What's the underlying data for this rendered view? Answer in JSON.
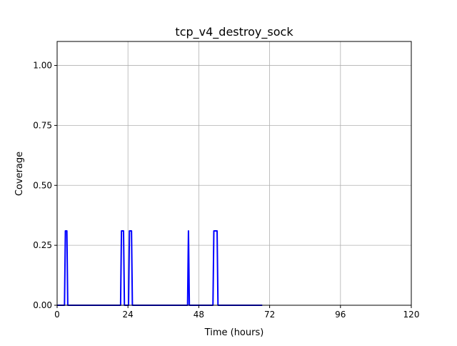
{
  "chart_data": {
    "type": "line",
    "title": "tcp_v4_destroy_sock",
    "xlabel": "Time (hours)",
    "ylabel": "Coverage",
    "xlim": [
      0,
      120
    ],
    "ylim": [
      0,
      1.1
    ],
    "xticks": [
      0,
      24,
      48,
      72,
      96,
      120
    ],
    "xtick_labels": [
      "0",
      "24",
      "48",
      "72",
      "96",
      "120"
    ],
    "yticks": [
      0,
      0.25,
      0.5,
      0.75,
      1.0
    ],
    "ytick_labels": [
      "0.00",
      "0.25",
      "0.50",
      "0.75",
      "1.00"
    ],
    "grid": true,
    "series": [
      {
        "color": "#0000ff",
        "x": [
          0,
          2.5,
          2.8,
          3.3,
          3.6,
          21.5,
          21.8,
          22.5,
          22.8,
          24.2,
          24.5,
          25.2,
          25.5,
          44.2,
          44.5,
          44.8,
          52.8,
          53.1,
          54.2,
          54.5,
          69.5
        ],
        "y": [
          0,
          0,
          0.31,
          0.31,
          0,
          0,
          0.31,
          0.31,
          0,
          0,
          0.31,
          0.31,
          0,
          0,
          0.31,
          0,
          0,
          0.31,
          0.31,
          0,
          0
        ]
      }
    ]
  }
}
